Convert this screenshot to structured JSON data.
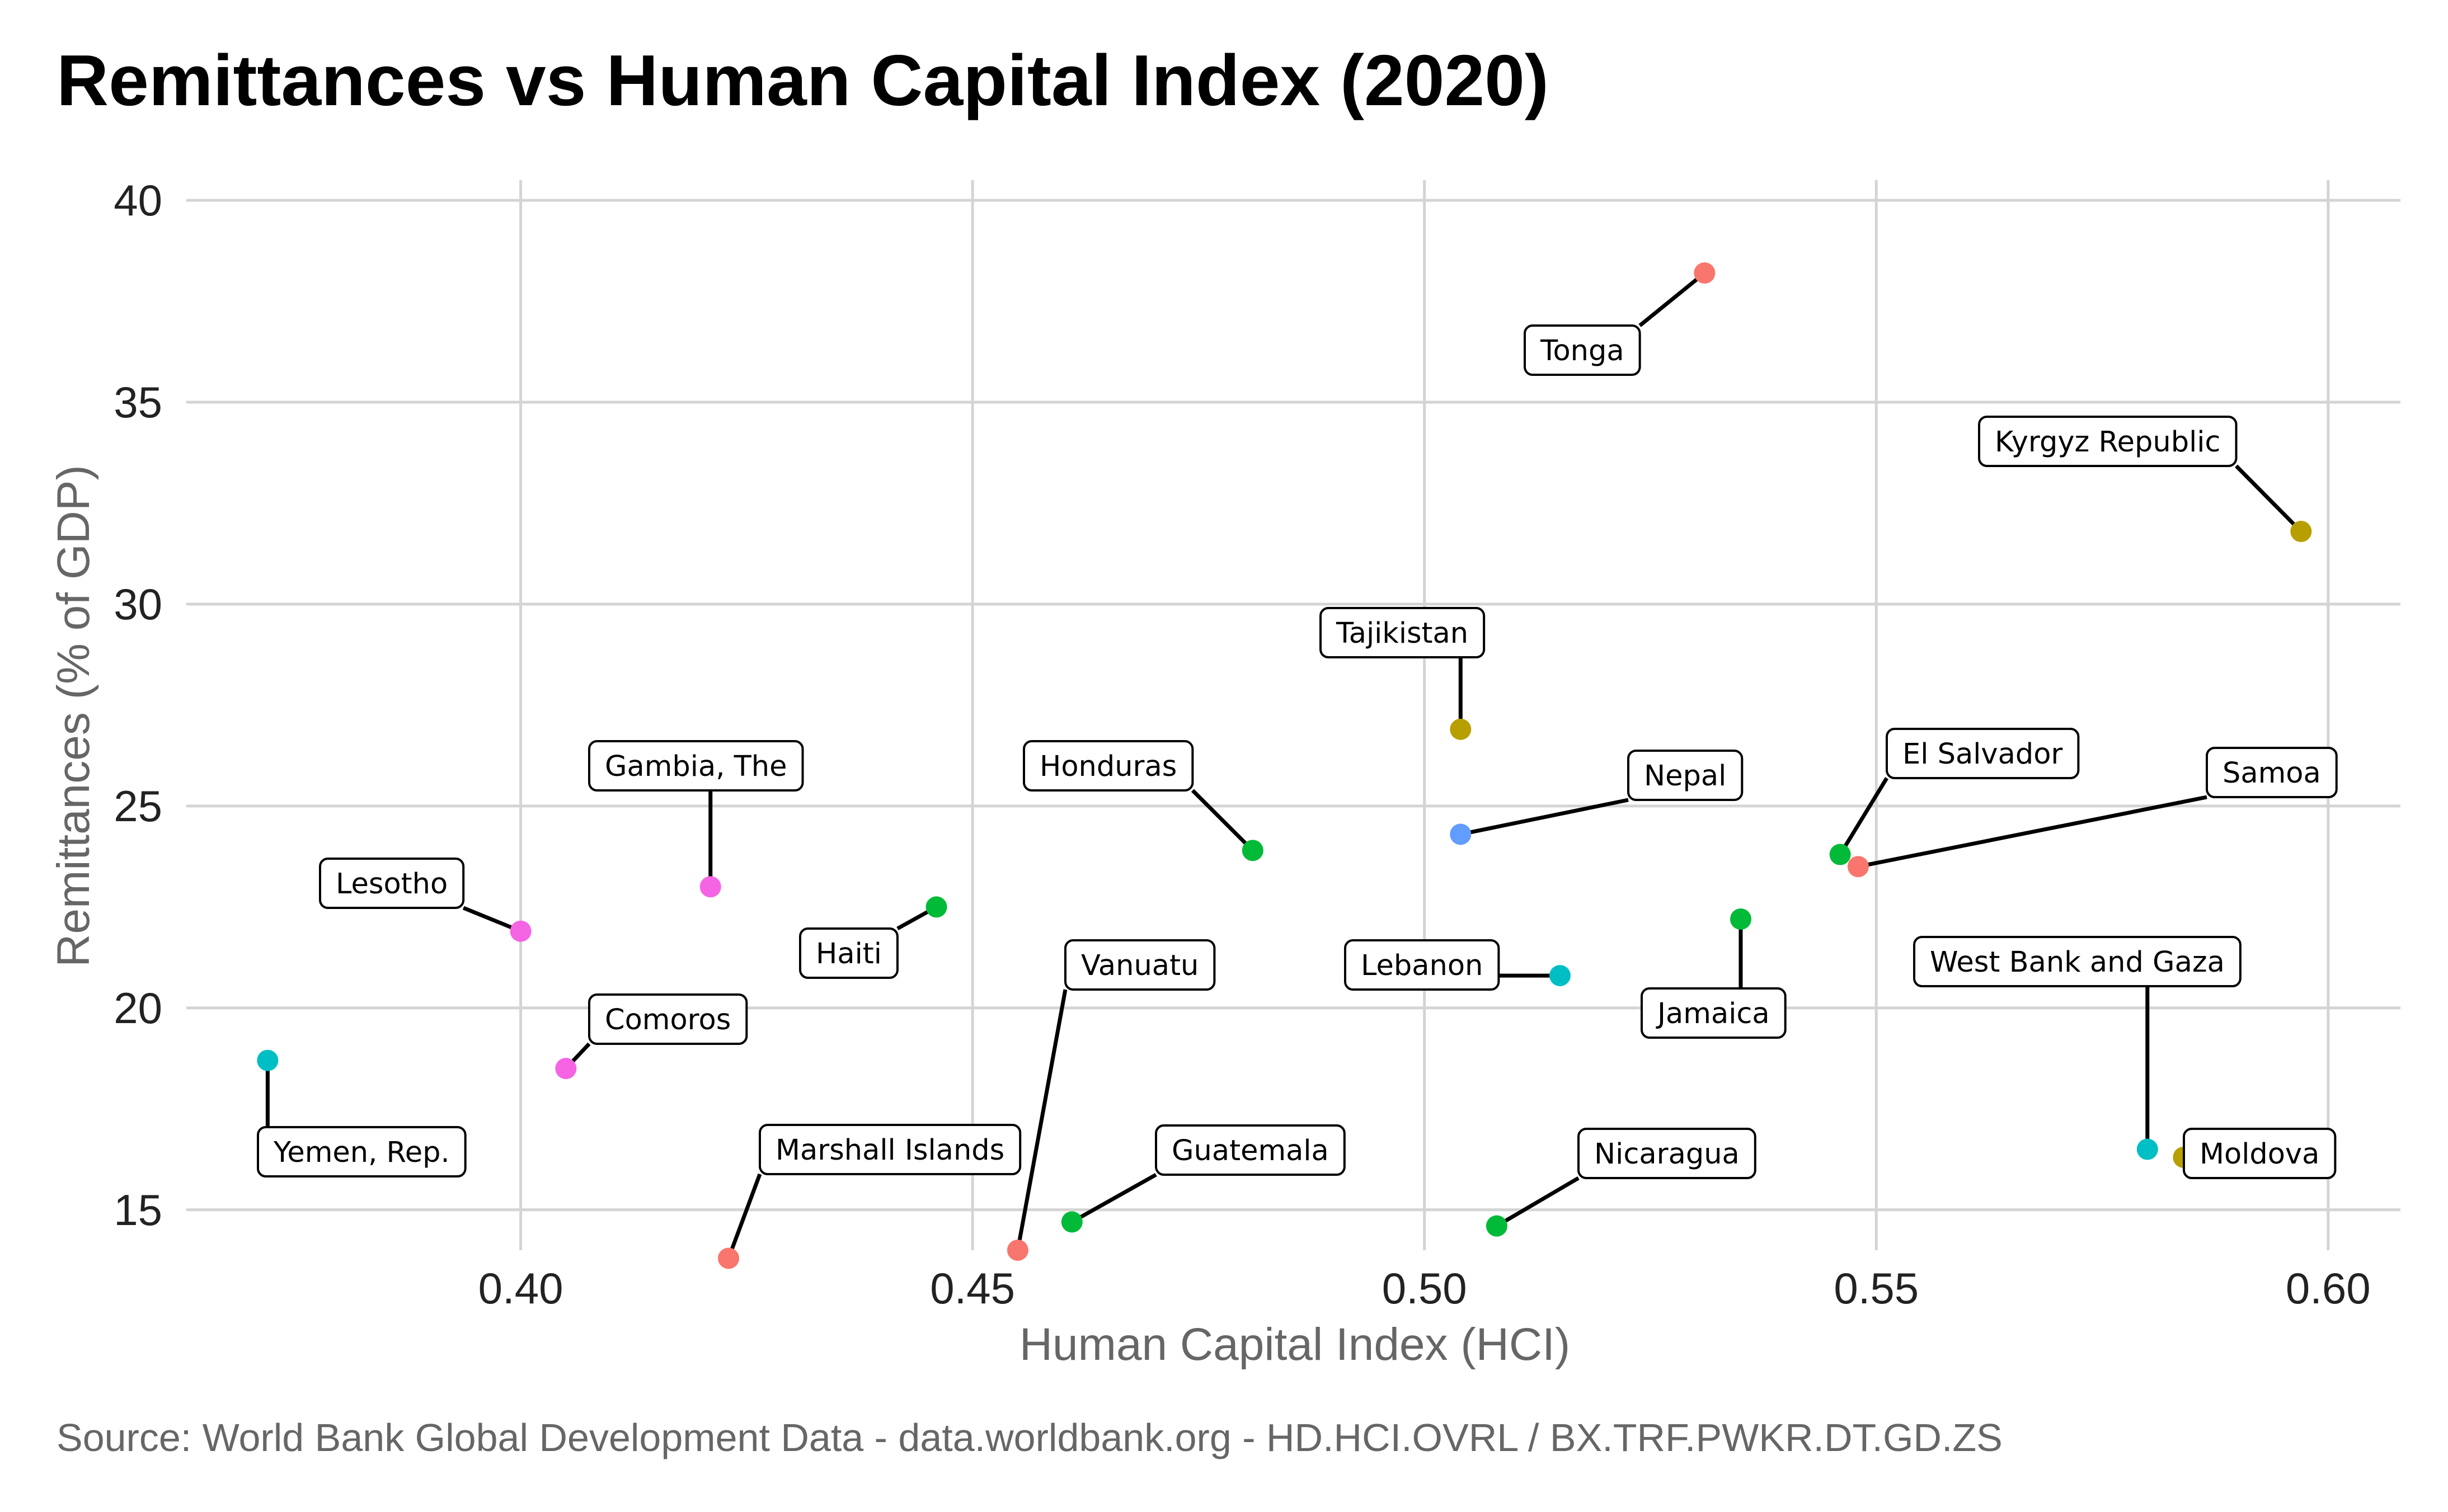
{
  "chart_data": {
    "type": "scatter",
    "title": "Remittances vs Human Capital Index (2020)",
    "caption": "Source: World Bank Global Development Data - data.worldbank.org - HD.HCI.OVRL / BX.TRF.PWKR.DT.GD.ZS",
    "xlabel": "Human Capital Index (HCI)",
    "ylabel": "Remittances (% of GDP)",
    "xlim": [
      0.363,
      0.608
    ],
    "ylim": [
      14.0,
      40.5
    ],
    "xticks": [
      0.4,
      0.45,
      0.5,
      0.55,
      0.6
    ],
    "xtick_labels": [
      "0.40",
      "0.45",
      "0.50",
      "0.55",
      "0.60"
    ],
    "yticks": [
      15,
      20,
      25,
      30,
      35,
      40
    ],
    "ytick_labels": [
      "15",
      "20",
      "25",
      "30",
      "35",
      "40"
    ],
    "grid": true,
    "legend": "none",
    "points": [
      {
        "name": "Tonga",
        "x": 0.531,
        "y": 38.2,
        "color": "#F8766D"
      },
      {
        "name": "Kyrgyz Republic",
        "x": 0.597,
        "y": 31.8,
        "color": "#B79F00"
      },
      {
        "name": "Tajikistan",
        "x": 0.504,
        "y": 26.9,
        "color": "#B79F00"
      },
      {
        "name": "Nepal",
        "x": 0.504,
        "y": 24.3,
        "color": "#619CFF"
      },
      {
        "name": "Honduras",
        "x": 0.481,
        "y": 23.9,
        "color": "#00BA38"
      },
      {
        "name": "Gambia, The",
        "x": 0.421,
        "y": 23.0,
        "color": "#F564E3"
      },
      {
        "name": "Lesotho",
        "x": 0.4,
        "y": 21.9,
        "color": "#F564E3"
      },
      {
        "name": "Haiti",
        "x": 0.446,
        "y": 22.5,
        "color": "#00BA38"
      },
      {
        "name": "El Salvador",
        "x": 0.546,
        "y": 23.8,
        "color": "#00BA38"
      },
      {
        "name": "Samoa",
        "x": 0.548,
        "y": 23.5,
        "color": "#F8766D"
      },
      {
        "name": "Jamaica",
        "x": 0.535,
        "y": 22.2,
        "color": "#00BA38"
      },
      {
        "name": "Lebanon",
        "x": 0.515,
        "y": 20.8,
        "color": "#00BFC4"
      },
      {
        "name": "Comoros",
        "x": 0.405,
        "y": 18.5,
        "color": "#F564E3"
      },
      {
        "name": "Yemen, Rep.",
        "x": 0.372,
        "y": 18.7,
        "color": "#00BFC4"
      },
      {
        "name": "West Bank and Gaza",
        "x": 0.58,
        "y": 16.5,
        "color": "#00BFC4"
      },
      {
        "name": "Moldova",
        "x": 0.584,
        "y": 16.3,
        "color": "#B79F00"
      },
      {
        "name": "Guatemala",
        "x": 0.461,
        "y": 14.7,
        "color": "#00BA38"
      },
      {
        "name": "Nicaragua",
        "x": 0.508,
        "y": 14.6,
        "color": "#00BA38"
      },
      {
        "name": "Vanuatu",
        "x": 0.455,
        "y": 14.0,
        "color": "#F8766D"
      },
      {
        "name": "Marshall Islands",
        "x": 0.423,
        "y": 13.8,
        "color": "#F8766D"
      }
    ]
  }
}
